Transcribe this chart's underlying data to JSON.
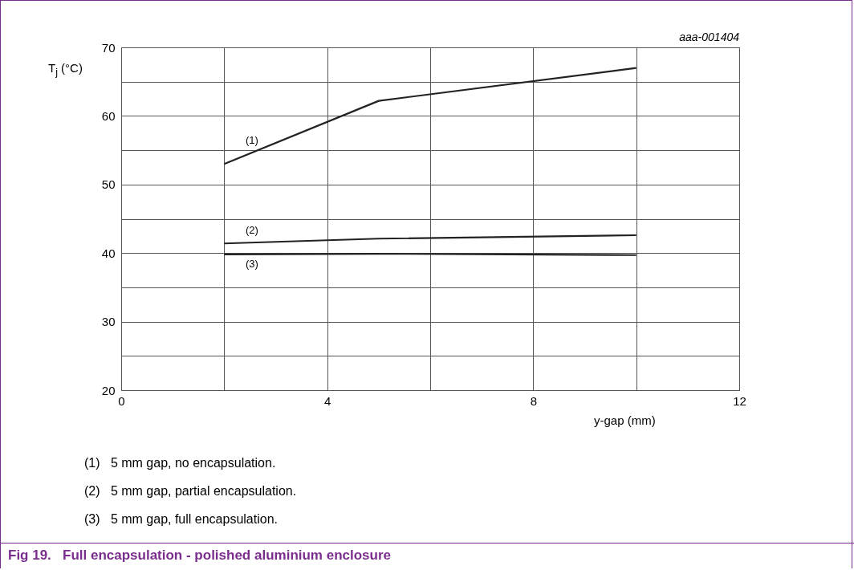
{
  "chart_data": {
    "type": "line",
    "title": "Fig 19.   Full encapsulation - polished aluminium enclosure",
    "xlabel": "y-gap (mm)",
    "ylabel": "T$_{j}$ (°C)",
    "series": [
      {
        "name": "(1)",
        "color": "#222222",
        "x": [
          2,
          5,
          10
        ],
        "values": [
          53,
          62.2,
          67
        ]
      },
      {
        "name": "(2)",
        "color": "#222222",
        "x": [
          2,
          5,
          10
        ],
        "values": [
          41.4,
          42.1,
          42.6
        ]
      },
      {
        "name": "(3)",
        "color": "#222222",
        "x": [
          2,
          5,
          10
        ],
        "values": [
          39.8,
          39.9,
          39.7
        ]
      }
    ],
    "xlim": [
      0,
      12
    ],
    "xticks": [
      0,
      {
        "value": 2,
        "label": null
      },
      4,
      {
        "value": 6,
        "label": null
      },
      8,
      {
        "value": 10,
        "label": null
      },
      12
    ],
    "ylim": [
      20,
      70
    ],
    "yticks": [
      20,
      {
        "value": 25,
        "label": null
      },
      30,
      {
        "value": 35,
        "label": null
      },
      40,
      {
        "value": 45,
        "label": null
      },
      50,
      {
        "value": 55,
        "label": null
      },
      60,
      {
        "value": 65,
        "label": null
      },
      70
    ],
    "grid": true,
    "marker": "none",
    "line_style": "solid",
    "annotations": [
      "aaa-001404",
      "(1)   5 mm gap, no encapsulation.",
      "(2)   5 mm gap, partial encapsulation.",
      "(3)   5 mm gap, full encapsulation."
    ]
  }
}
